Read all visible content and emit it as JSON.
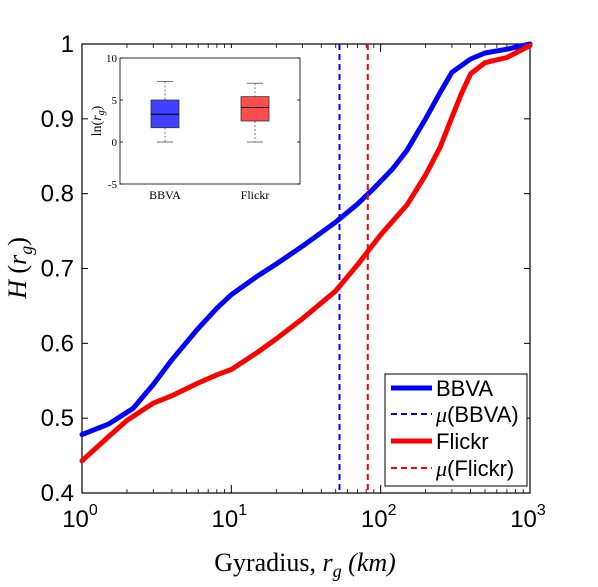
{
  "chart_data": [
    {
      "type": "line",
      "xscale": "log",
      "xlim": [
        1,
        1000
      ],
      "ylim": [
        0.4,
        1.0
      ],
      "xticks": [
        {
          "value": 1,
          "base": "10",
          "exp": "0"
        },
        {
          "value": 10,
          "base": "10",
          "exp": "1"
        },
        {
          "value": 100,
          "base": "10",
          "exp": "2"
        },
        {
          "value": 1000,
          "base": "10",
          "exp": "3"
        }
      ],
      "yticks": [
        "0.4",
        "0.5",
        "0.6",
        "0.7",
        "0.8",
        "0.9",
        "1"
      ],
      "xlabel": {
        "text": "Gyradius, ",
        "var": "r",
        "sub": "g",
        "unit": " (km)"
      },
      "ylabel": {
        "var": "H",
        "open": " (",
        "arg": "r",
        "sub": "g",
        "close": ")"
      },
      "grid": false,
      "legend_position": "bottom-right",
      "series": [
        {
          "name": "BBVA",
          "color": "#0000ff",
          "style": "solid",
          "x": [
            1,
            1.5,
            2.2,
            3,
            4,
            6,
            8,
            10,
            15,
            20,
            30,
            50,
            70,
            90,
            120,
            150,
            200,
            250,
            300,
            400,
            500,
            700,
            1000
          ],
          "y": [
            0.478,
            0.492,
            0.513,
            0.545,
            0.578,
            0.62,
            0.647,
            0.665,
            0.69,
            0.706,
            0.73,
            0.762,
            0.786,
            0.807,
            0.833,
            0.858,
            0.9,
            0.935,
            0.962,
            0.98,
            0.988,
            0.993,
            1.0
          ]
        },
        {
          "name": "μ(BBVA)",
          "color": "#0000ff",
          "style": "dashed",
          "vline": 53
        },
        {
          "name": "Flickr",
          "color": "#ff0000",
          "style": "solid",
          "x": [
            1,
            1.5,
            2,
            3,
            4,
            6,
            8,
            10,
            15,
            20,
            30,
            50,
            70,
            100,
            150,
            200,
            250,
            300,
            350,
            400,
            500,
            700,
            1000
          ],
          "y": [
            0.443,
            0.475,
            0.497,
            0.52,
            0.53,
            0.547,
            0.558,
            0.565,
            0.588,
            0.606,
            0.633,
            0.67,
            0.705,
            0.745,
            0.785,
            0.825,
            0.862,
            0.902,
            0.935,
            0.96,
            0.975,
            0.982,
            0.998
          ]
        },
        {
          "name": "μ(Flickr)",
          "color": "#ff0000",
          "style": "dashed",
          "vline": 82
        }
      ],
      "legend": [
        {
          "label": "BBVA",
          "prefix": "",
          "style": "solid",
          "color": "#0000ff"
        },
        {
          "label": "(BBVA)",
          "prefix": "μ",
          "style": "dashed",
          "color": "#0000ff"
        },
        {
          "label": "Flickr",
          "prefix": "",
          "style": "solid",
          "color": "#ff0000"
        },
        {
          "label": "(Flickr)",
          "prefix": "μ",
          "style": "dashed",
          "color": "#ff0000"
        }
      ]
    },
    {
      "type": "boxplot",
      "ylim": [
        -5,
        10
      ],
      "yticks": [
        "-5",
        "0",
        "5",
        "10"
      ],
      "ylabel": {
        "text": "ln(",
        "var": "r",
        "sub": "g",
        "close": ")"
      },
      "categories": [
        "BBVA",
        "Flickr"
      ],
      "boxes": [
        {
          "name": "BBVA",
          "color": "#4040ff",
          "min": 0,
          "q1": 1.7,
          "median": 3.3,
          "q3": 5.0,
          "max": 7.2
        },
        {
          "name": "Flickr",
          "color": "#ff4c4c",
          "min": 0,
          "q1": 2.5,
          "median": 4.1,
          "q3": 5.4,
          "max": 7.0
        }
      ]
    }
  ]
}
